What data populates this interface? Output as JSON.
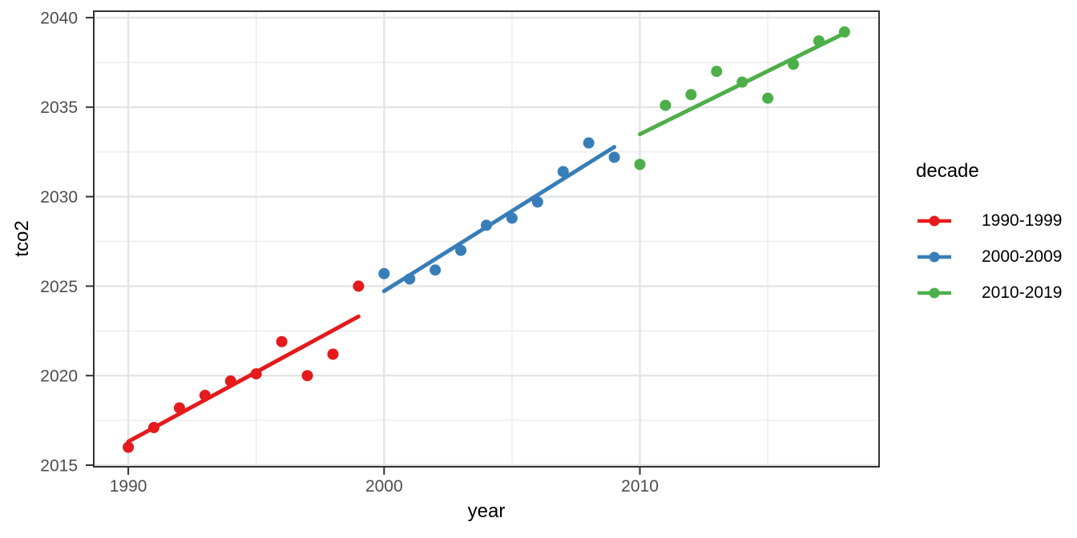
{
  "chart_data": {
    "type": "scatter",
    "title": "",
    "xlabel": "year",
    "ylabel": "tco2",
    "xlim": [
      1988.65,
      2019.35
    ],
    "ylim": [
      2014.91,
      2040.36
    ],
    "x_major_ticks": [
      1990,
      2000,
      2010
    ],
    "x_minor_ticks": [
      1995,
      2005,
      2015
    ],
    "y_major_ticks": [
      2015,
      2020,
      2025,
      2030,
      2035,
      2040
    ],
    "y_minor_ticks": [
      2017.5,
      2022.5,
      2027.5,
      2032.5,
      2037.5
    ],
    "grid": true,
    "trend_lines": "linear-ols-per-series",
    "point_radius": 7,
    "legend": {
      "title": "decade",
      "position": "right"
    },
    "series": [
      {
        "name": "1990-1999",
        "color": "#E41A1C",
        "x": [
          1990,
          1991,
          1992,
          1993,
          1994,
          1995,
          1996,
          1997,
          1998,
          1999
        ],
        "y": [
          2016.0,
          2017.1,
          2018.2,
          2018.9,
          2019.7,
          2020.1,
          2021.9,
          2020.0,
          2021.2,
          2025.0
        ]
      },
      {
        "name": "2000-2009",
        "color": "#377EB8",
        "x": [
          2000,
          2001,
          2002,
          2003,
          2004,
          2005,
          2006,
          2007,
          2008,
          2009
        ],
        "y": [
          2025.7,
          2025.4,
          2025.9,
          2027.0,
          2028.4,
          2028.8,
          2029.7,
          2031.4,
          2033.0,
          2032.2
        ]
      },
      {
        "name": "2010-2019",
        "color": "#4DAF4A",
        "x": [
          2010,
          2011,
          2012,
          2013,
          2014,
          2015,
          2016,
          2017,
          2018
        ],
        "y": [
          2031.8,
          2035.1,
          2035.7,
          2037.0,
          2036.4,
          2035.5,
          2037.4,
          2038.7,
          2039.2
        ]
      }
    ],
    "style": {
      "grid_major_color": "#E4E4E4",
      "grid_minor_color": "#EBEBEB",
      "panel_border_color": "#333333",
      "tick_color": "#333333",
      "tick_label_color": "#4D4D4D",
      "background_color": "#FFFFFF"
    }
  }
}
